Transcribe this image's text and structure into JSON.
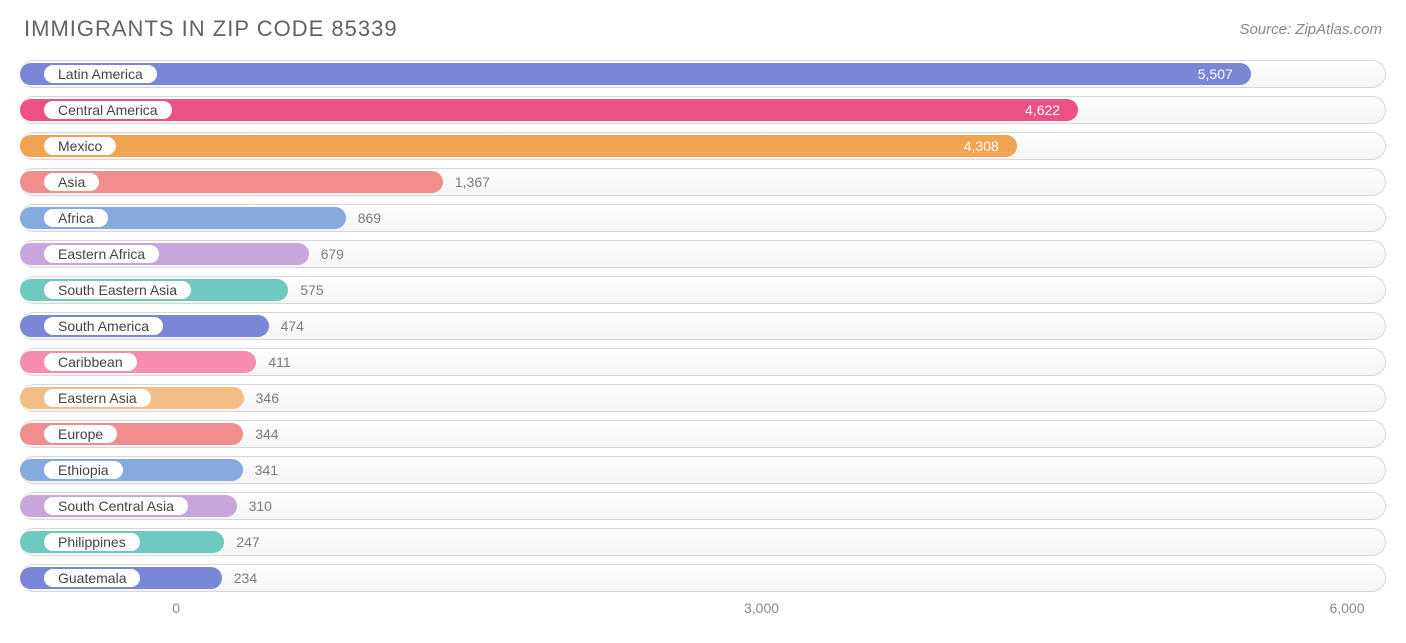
{
  "header": {
    "title": "IMMIGRANTS IN ZIP CODE 85339",
    "source": "Source: ZipAtlas.com"
  },
  "chart": {
    "type": "bar",
    "x_min": -800,
    "x_max": 6200,
    "bar_left_offset_value": -800,
    "track_border_color": "#d7d7d7",
    "track_bg_top": "#ffffff",
    "track_bg_bottom": "#f4f4f4",
    "pill_bg": "#ffffff",
    "value_inside_color": "#ffffff",
    "value_outside_color": "#7b7b7b",
    "ticks": [
      {
        "value": 0,
        "label": "0"
      },
      {
        "value": 3000,
        "label": "3,000"
      },
      {
        "value": 6000,
        "label": "6,000"
      }
    ],
    "rows": [
      {
        "label": "Latin America",
        "value": 5507,
        "display": "5,507",
        "color": "#7a87d6",
        "value_inside": true
      },
      {
        "label": "Central America",
        "value": 4622,
        "display": "4,622",
        "color": "#ec5186",
        "value_inside": true
      },
      {
        "label": "Mexico",
        "value": 4308,
        "display": "4,308",
        "color": "#f0a350",
        "value_inside": true
      },
      {
        "label": "Asia",
        "value": 1367,
        "display": "1,367",
        "color": "#f08d8d",
        "value_inside": false
      },
      {
        "label": "Africa",
        "value": 869,
        "display": "869",
        "color": "#84aade",
        "value_inside": false
      },
      {
        "label": "Eastern Africa",
        "value": 679,
        "display": "679",
        "color": "#c7a6db",
        "value_inside": false
      },
      {
        "label": "South Eastern Asia",
        "value": 575,
        "display": "575",
        "color": "#6fc9be",
        "value_inside": false
      },
      {
        "label": "South America",
        "value": 474,
        "display": "474",
        "color": "#7a87d6",
        "value_inside": false
      },
      {
        "label": "Caribbean",
        "value": 411,
        "display": "411",
        "color": "#f48db0",
        "value_inside": false
      },
      {
        "label": "Eastern Asia",
        "value": 346,
        "display": "346",
        "color": "#f3be85",
        "value_inside": false
      },
      {
        "label": "Europe",
        "value": 344,
        "display": "344",
        "color": "#f08d8d",
        "value_inside": false
      },
      {
        "label": "Ethiopia",
        "value": 341,
        "display": "341",
        "color": "#84aade",
        "value_inside": false
      },
      {
        "label": "South Central Asia",
        "value": 310,
        "display": "310",
        "color": "#c7a6db",
        "value_inside": false
      },
      {
        "label": "Philippines",
        "value": 247,
        "display": "247",
        "color": "#6fc9be",
        "value_inside": false
      },
      {
        "label": "Guatemala",
        "value": 234,
        "display": "234",
        "color": "#7a87d6",
        "value_inside": false
      }
    ]
  }
}
